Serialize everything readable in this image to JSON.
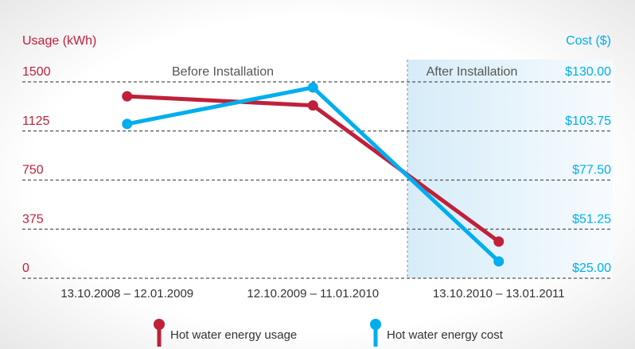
{
  "chart_data": {
    "type": "line",
    "y_label": "Usage (kWh)",
    "y2_label": "Cost ($)",
    "annotations": [
      "Before Installation",
      "After Installation"
    ],
    "categories": [
      "13.10.2008 – 12.01.2009",
      "12.10.2009 – 11.01.2010",
      "13.10.2010 – 13.01.2011"
    ],
    "series": [
      {
        "name": "Hot water energy usage",
        "color": "#c0203a",
        "values": [
          1390,
          1320,
          280
        ]
      },
      {
        "name": "Hot water energy cost",
        "color": "#00aeef",
        "values": [
          107.5,
          127,
          34
        ],
        "axis": "y2"
      }
    ],
    "ylim": [
      0,
      1500
    ],
    "yticks": [
      0,
      375,
      750,
      1125,
      1500
    ],
    "y2lim": [
      25,
      130
    ],
    "y2ticks": [
      {
        "value": 25,
        "label": "$25.00"
      },
      {
        "value": 51.25,
        "label": "$51.25"
      },
      {
        "value": 77.5,
        "label": "$77.50"
      },
      {
        "value": 103.75,
        "label": "$103.75"
      },
      {
        "value": 130,
        "label": "$130.00"
      }
    ],
    "grid": true
  }
}
